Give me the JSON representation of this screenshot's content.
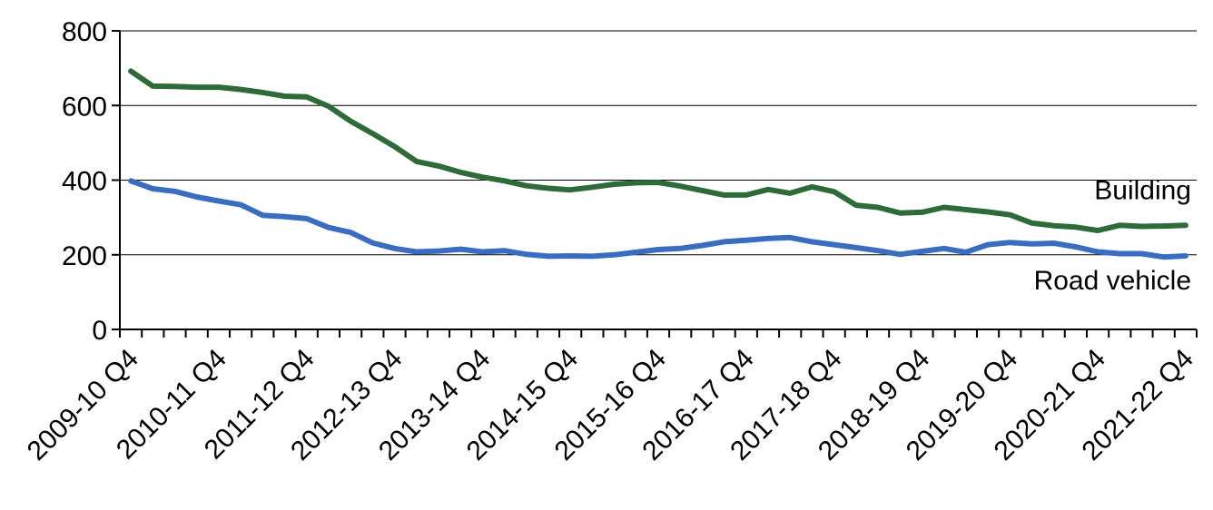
{
  "chart_data": {
    "type": "line",
    "title": "",
    "xlabel": "",
    "ylabel": "",
    "ylim": [
      0,
      800
    ],
    "yticks": [
      0,
      200,
      400,
      600,
      800
    ],
    "grid": "horizontal",
    "legend": "none",
    "categories": [
      "2009-10 Q4",
      "2010-11 Q1",
      "2010-11 Q2",
      "2010-11 Q3",
      "2010-11 Q4",
      "2011-12 Q1",
      "2011-12 Q2",
      "2011-12 Q3",
      "2011-12 Q4",
      "2012-13 Q1",
      "2012-13 Q2",
      "2012-13 Q3",
      "2012-13 Q4",
      "2013-14 Q1",
      "2013-14 Q2",
      "2013-14 Q3",
      "2013-14 Q4",
      "2014-15 Q1",
      "2014-15 Q2",
      "2014-15 Q3",
      "2014-15 Q4",
      "2015-16 Q1",
      "2015-16 Q2",
      "2015-16 Q3",
      "2015-16 Q4",
      "2016-17 Q1",
      "2016-17 Q2",
      "2016-17 Q3",
      "2016-17 Q4",
      "2017-18 Q1",
      "2017-18 Q2",
      "2017-18 Q3",
      "2017-18 Q4",
      "2018-19 Q1",
      "2018-19 Q2",
      "2018-19 Q3",
      "2018-19 Q4",
      "2019-20 Q1",
      "2019-20 Q2",
      "2019-20 Q3",
      "2019-20 Q4",
      "2020-21 Q1",
      "2020-21 Q2",
      "2020-21 Q3",
      "2020-21 Q4",
      "2021-22 Q1",
      "2021-22 Q2",
      "2021-22 Q3",
      "2021-22 Q4"
    ],
    "tick_labels": [
      "2009-10 Q4",
      "2010-11 Q4",
      "2011-12 Q4",
      "2012-13 Q4",
      "2013-14 Q4",
      "2014-15 Q4",
      "2015-16 Q4",
      "2016-17 Q4",
      "2017-18 Q4",
      "2018-19 Q4",
      "2019-20 Q4",
      "2020-21 Q4",
      "2021-22 Q4"
    ],
    "series": [
      {
        "name": "Building",
        "color": "#2e6b38",
        "values": [
          692,
          652,
          651,
          649,
          649,
          643,
          635,
          625,
          623,
          598,
          558,
          525,
          490,
          450,
          438,
          421,
          408,
          398,
          385,
          378,
          374,
          381,
          389,
          393,
          394,
          384,
          372,
          360,
          360,
          375,
          365,
          382,
          369,
          333,
          327,
          312,
          314,
          327,
          321,
          315,
          307,
          285,
          278,
          274,
          265,
          279,
          276,
          277,
          279
        ]
      },
      {
        "name": "Road vehicle",
        "color": "#3a6cc0",
        "values": [
          398,
          377,
          370,
          355,
          344,
          334,
          306,
          302,
          297,
          273,
          260,
          232,
          217,
          208,
          210,
          215,
          208,
          211,
          201,
          196,
          197,
          196,
          200,
          207,
          214,
          217,
          225,
          235,
          239,
          244,
          246,
          235,
          227,
          219,
          211,
          201,
          209,
          217,
          207,
          227,
          233,
          229,
          231,
          221,
          208,
          203,
          203,
          194,
          197
        ]
      }
    ]
  }
}
